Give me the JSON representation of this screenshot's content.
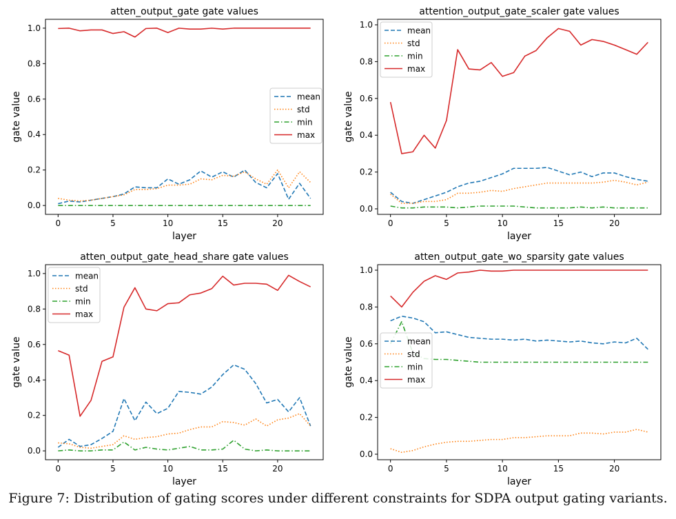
{
  "chart_data": [
    {
      "type": "line",
      "title": "atten_output_gate gate values",
      "xlabel": "layer",
      "ylabel": "gate value",
      "xlim": [
        -1.15,
        24.15
      ],
      "ylim": [
        -0.05,
        1.05
      ],
      "xticks": [
        0,
        5,
        10,
        15,
        20
      ],
      "yticks": [
        0.0,
        0.2,
        0.4,
        0.6,
        0.8,
        1.0
      ],
      "legend": "center-right",
      "x": [
        0,
        1,
        2,
        3,
        4,
        5,
        6,
        7,
        8,
        9,
        10,
        11,
        12,
        13,
        14,
        15,
        16,
        17,
        18,
        19,
        20,
        21,
        22,
        23
      ],
      "series": [
        {
          "name": "mean",
          "style": "dashed",
          "color": "#1f77b4",
          "values": [
            0.01,
            0.025,
            0.02,
            0.03,
            0.04,
            0.05,
            0.065,
            0.105,
            0.1,
            0.1,
            0.15,
            0.12,
            0.145,
            0.195,
            0.16,
            0.19,
            0.16,
            0.2,
            0.13,
            0.1,
            0.18,
            0.035,
            0.125,
            0.04
          ]
        },
        {
          "name": "std",
          "style": "dotted",
          "color": "#ff7f0e",
          "values": [
            0.04,
            0.03,
            0.025,
            0.03,
            0.04,
            0.05,
            0.06,
            0.09,
            0.09,
            0.095,
            0.115,
            0.115,
            0.12,
            0.15,
            0.145,
            0.17,
            0.165,
            0.19,
            0.15,
            0.12,
            0.2,
            0.1,
            0.19,
            0.13
          ]
        },
        {
          "name": "min",
          "style": "dashdot",
          "color": "#2ca02c",
          "values": [
            0,
            0,
            0,
            0,
            0,
            0,
            0,
            0,
            0,
            0,
            0,
            0,
            0,
            0,
            0,
            0,
            0,
            0,
            0,
            0,
            0,
            0,
            0,
            0
          ]
        },
        {
          "name": "max",
          "style": "solid",
          "color": "#d62728",
          "values": [
            0.998,
            1.0,
            0.985,
            0.99,
            0.99,
            0.97,
            0.98,
            0.95,
            0.998,
            1.0,
            0.975,
            1.0,
            0.995,
            0.995,
            1.0,
            0.995,
            1.0,
            1.0,
            1.0,
            1.0,
            1.0,
            1.0,
            1.0,
            1.0
          ]
        }
      ]
    },
    {
      "type": "line",
      "title": "attention_output_gate_scaler gate values",
      "xlabel": "layer",
      "ylabel": "gate value",
      "xlim": [
        -1.15,
        24.15
      ],
      "ylim": [
        -0.03,
        1.03
      ],
      "xticks": [
        0,
        5,
        10,
        15,
        20
      ],
      "yticks": [
        0.0,
        0.2,
        0.4,
        0.6,
        0.8,
        1.0
      ],
      "legend": "top-left",
      "x": [
        0,
        1,
        2,
        3,
        4,
        5,
        6,
        7,
        8,
        9,
        10,
        11,
        12,
        13,
        14,
        15,
        16,
        17,
        18,
        19,
        20,
        21,
        22,
        23
      ],
      "series": [
        {
          "name": "mean",
          "style": "dashed",
          "color": "#1f77b4",
          "values": [
            0.09,
            0.04,
            0.03,
            0.05,
            0.07,
            0.09,
            0.12,
            0.14,
            0.15,
            0.17,
            0.19,
            0.22,
            0.22,
            0.22,
            0.225,
            0.205,
            0.185,
            0.2,
            0.175,
            0.195,
            0.195,
            0.175,
            0.16,
            0.15
          ]
        },
        {
          "name": "std",
          "style": "dotted",
          "color": "#ff7f0e",
          "values": [
            0.08,
            0.03,
            0.03,
            0.04,
            0.04,
            0.05,
            0.085,
            0.085,
            0.09,
            0.1,
            0.095,
            0.11,
            0.12,
            0.13,
            0.14,
            0.14,
            0.14,
            0.14,
            0.14,
            0.145,
            0.155,
            0.145,
            0.13,
            0.145
          ]
        },
        {
          "name": "min",
          "style": "dashdot",
          "color": "#2ca02c",
          "values": [
            0.015,
            0.005,
            0.005,
            0.01,
            0.01,
            0.01,
            0.005,
            0.01,
            0.015,
            0.015,
            0.015,
            0.015,
            0.01,
            0.005,
            0.005,
            0.005,
            0.005,
            0.01,
            0.005,
            0.01,
            0.005,
            0.005,
            0.005,
            0.005
          ]
        },
        {
          "name": "max",
          "style": "solid",
          "color": "#d62728",
          "values": [
            0.58,
            0.3,
            0.31,
            0.4,
            0.33,
            0.48,
            0.865,
            0.76,
            0.755,
            0.795,
            0.72,
            0.74,
            0.83,
            0.86,
            0.93,
            0.98,
            0.965,
            0.89,
            0.92,
            0.91,
            0.89,
            0.865,
            0.84,
            0.905
          ]
        }
      ]
    },
    {
      "type": "line",
      "title": "atten_output_gate_head_share gate values",
      "xlabel": "layer",
      "ylabel": "gate value",
      "xlim": [
        -1.15,
        24.15
      ],
      "ylim": [
        -0.05,
        1.05
      ],
      "xticks": [
        0,
        5,
        10,
        15,
        20
      ],
      "yticks": [
        0.0,
        0.2,
        0.4,
        0.6,
        0.8,
        1.0
      ],
      "legend": "top-left",
      "x": [
        0,
        1,
        2,
        3,
        4,
        5,
        6,
        7,
        8,
        9,
        10,
        11,
        12,
        13,
        14,
        15,
        16,
        17,
        18,
        19,
        20,
        21,
        22,
        23
      ],
      "series": [
        {
          "name": "mean",
          "style": "dashed",
          "color": "#1f77b4",
          "values": [
            0.02,
            0.065,
            0.025,
            0.035,
            0.07,
            0.11,
            0.295,
            0.17,
            0.275,
            0.21,
            0.24,
            0.335,
            0.33,
            0.32,
            0.36,
            0.43,
            0.485,
            0.46,
            0.38,
            0.27,
            0.29,
            0.22,
            0.3,
            0.14
          ]
        },
        {
          "name": "std",
          "style": "dotted",
          "color": "#ff7f0e",
          "values": [
            0.045,
            0.04,
            0.02,
            0.015,
            0.025,
            0.035,
            0.085,
            0.065,
            0.075,
            0.08,
            0.095,
            0.1,
            0.12,
            0.135,
            0.135,
            0.165,
            0.16,
            0.145,
            0.18,
            0.14,
            0.175,
            0.185,
            0.21,
            0.14
          ]
        },
        {
          "name": "min",
          "style": "dashdot",
          "color": "#2ca02c",
          "values": [
            0.0,
            0.005,
            0.0,
            0.0,
            0.005,
            0.005,
            0.05,
            0.005,
            0.02,
            0.01,
            0.005,
            0.015,
            0.025,
            0.005,
            0.005,
            0.01,
            0.06,
            0.01,
            0.0,
            0.005,
            0.0,
            0.0,
            0.0,
            0.0
          ]
        },
        {
          "name": "max",
          "style": "solid",
          "color": "#d62728",
          "values": [
            0.565,
            0.54,
            0.195,
            0.285,
            0.505,
            0.53,
            0.81,
            0.92,
            0.8,
            0.79,
            0.83,
            0.835,
            0.88,
            0.89,
            0.915,
            0.985,
            0.935,
            0.945,
            0.945,
            0.94,
            0.905,
            0.99,
            0.955,
            0.925
          ]
        }
      ]
    },
    {
      "type": "line",
      "title": "atten_output_gate_wo_sparsity gate values",
      "xlabel": "layer",
      "ylabel": "gate value",
      "xlim": [
        -1.15,
        24.15
      ],
      "ylim": [
        -0.03,
        1.03
      ],
      "xticks": [
        0,
        5,
        10,
        15,
        20
      ],
      "yticks": [
        0.0,
        0.2,
        0.4,
        0.6,
        0.8,
        1.0
      ],
      "legend": "center-left",
      "x": [
        0,
        1,
        2,
        3,
        4,
        5,
        6,
        7,
        8,
        9,
        10,
        11,
        12,
        13,
        14,
        15,
        16,
        17,
        18,
        19,
        20,
        21,
        22,
        23
      ],
      "series": [
        {
          "name": "mean",
          "style": "dashed",
          "color": "#1f77b4",
          "values": [
            0.725,
            0.75,
            0.74,
            0.72,
            0.66,
            0.665,
            0.65,
            0.635,
            0.63,
            0.625,
            0.625,
            0.62,
            0.625,
            0.615,
            0.62,
            0.615,
            0.61,
            0.615,
            0.605,
            0.6,
            0.61,
            0.605,
            0.63,
            0.57
          ]
        },
        {
          "name": "std",
          "style": "dotted",
          "color": "#ff7f0e",
          "values": [
            0.03,
            0.01,
            0.02,
            0.04,
            0.055,
            0.065,
            0.07,
            0.07,
            0.075,
            0.08,
            0.08,
            0.09,
            0.09,
            0.095,
            0.1,
            0.1,
            0.1,
            0.115,
            0.115,
            0.11,
            0.12,
            0.12,
            0.135,
            0.12
          ]
        },
        {
          "name": "min",
          "style": "dashdot",
          "color": "#2ca02c",
          "values": [
            0.6,
            0.72,
            0.55,
            0.52,
            0.515,
            0.515,
            0.51,
            0.505,
            0.5,
            0.5,
            0.5,
            0.5,
            0.5,
            0.5,
            0.5,
            0.5,
            0.5,
            0.5,
            0.5,
            0.5,
            0.5,
            0.5,
            0.5,
            0.5
          ]
        },
        {
          "name": "max",
          "style": "solid",
          "color": "#d62728",
          "values": [
            0.86,
            0.8,
            0.88,
            0.94,
            0.97,
            0.95,
            0.985,
            0.99,
            1.0,
            0.995,
            0.995,
            1.0,
            1.0,
            1.0,
            1.0,
            1.0,
            1.0,
            1.0,
            1.0,
            1.0,
            1.0,
            1.0,
            1.0,
            1.0
          ]
        }
      ]
    }
  ],
  "caption": {
    "label": "Figure 7:",
    "text": "Distribution of gating scores under different constraints for SDPA output gating variants."
  }
}
